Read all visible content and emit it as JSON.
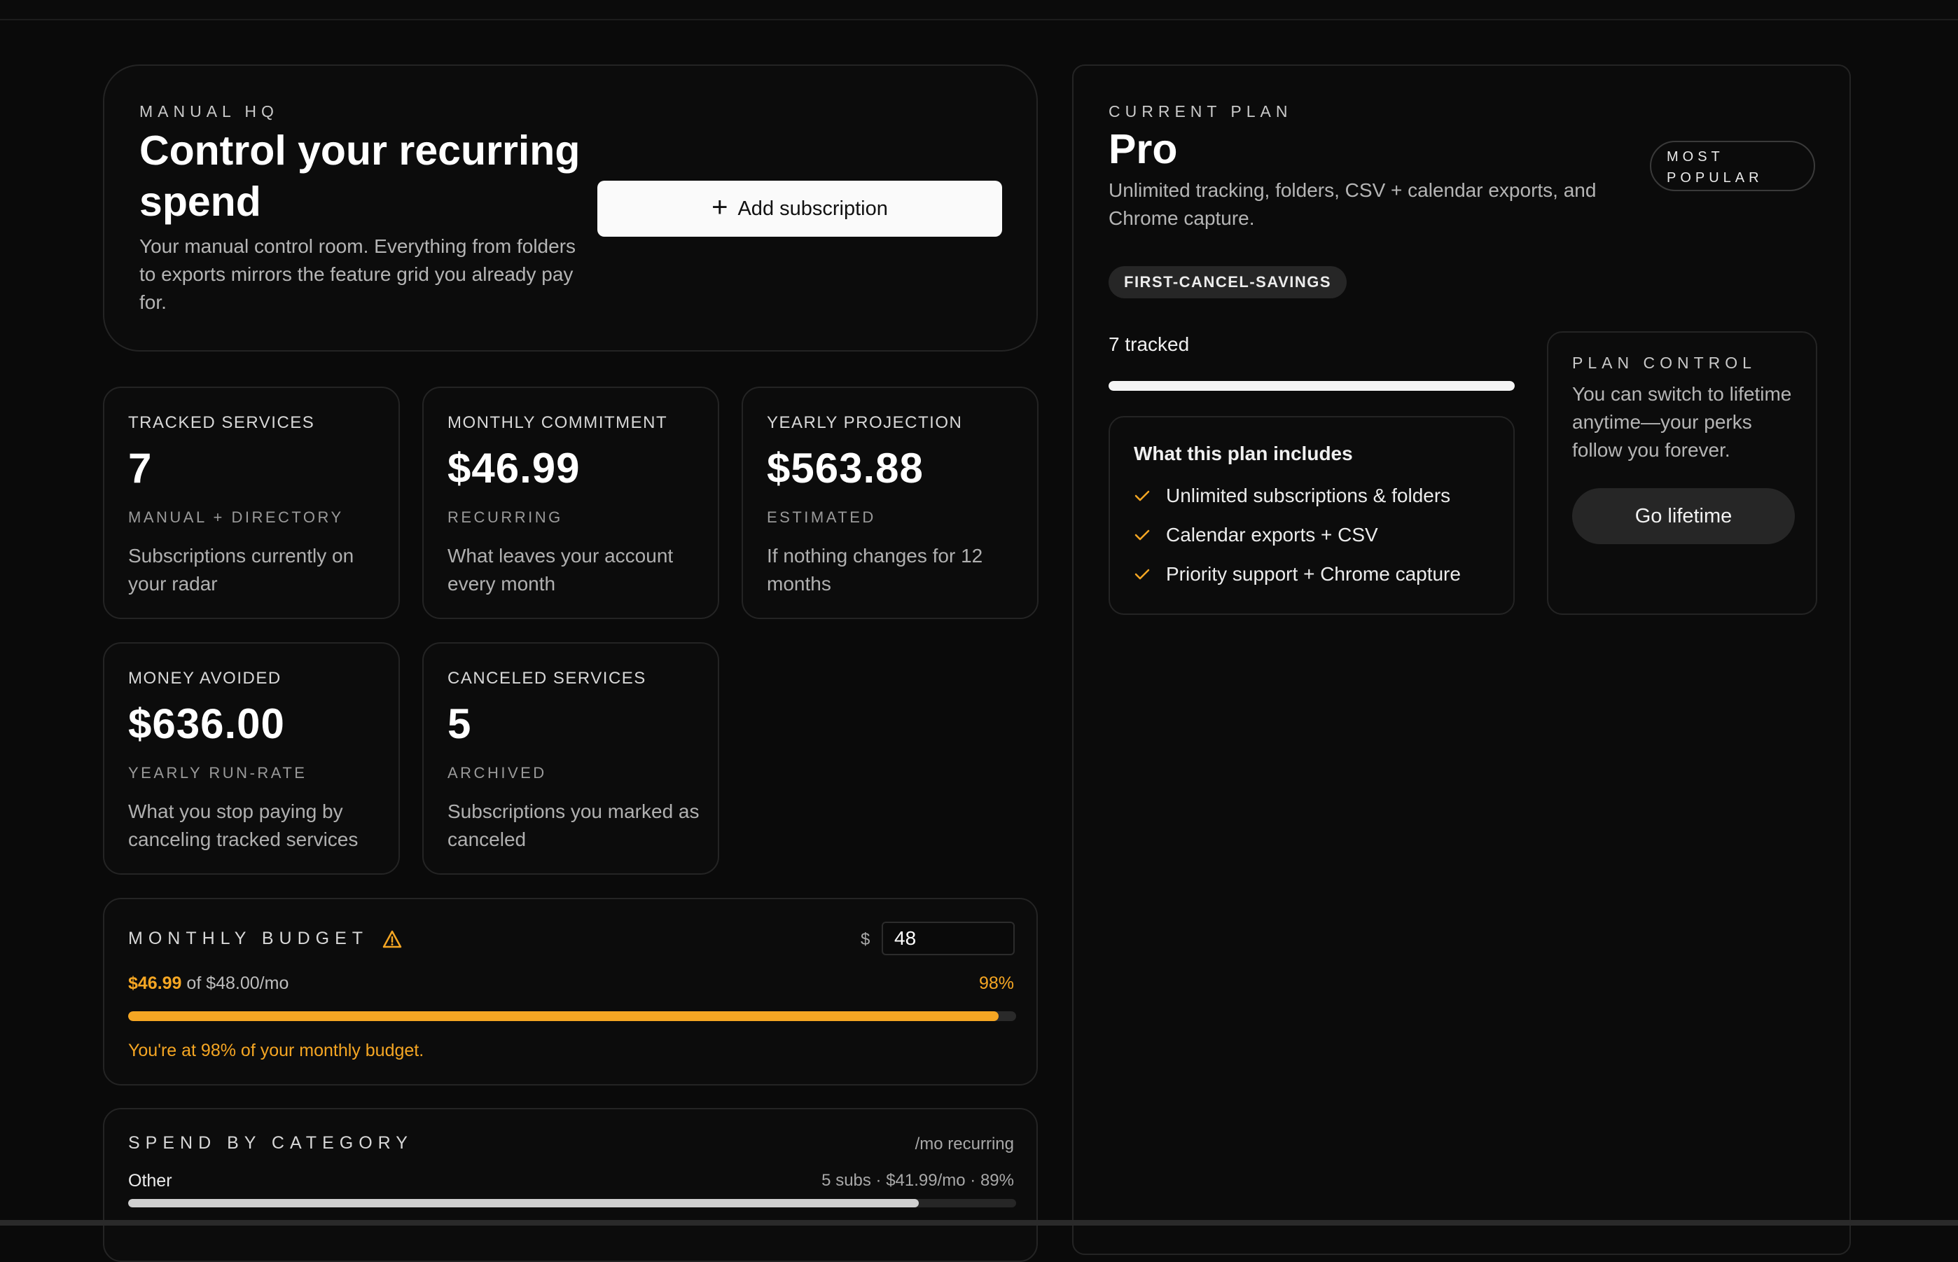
{
  "hero": {
    "eyebrow": "MANUAL HQ",
    "title": "Control your recurring spend",
    "description": "Your manual control room. Everything from folders to exports mirrors the feature grid you already pay for.",
    "add_button": "Add subscription"
  },
  "stats": [
    {
      "label": "TRACKED SERVICES",
      "value": "7",
      "sub": "MANUAL + DIRECTORY",
      "desc": "Subscriptions currently on your radar"
    },
    {
      "label": "MONTHLY COMMITMENT",
      "value": "$46.99",
      "sub": "RECURRING",
      "desc": "What leaves your account every month"
    },
    {
      "label": "YEARLY PROJECTION",
      "value": "$563.88",
      "sub": "ESTIMATED",
      "desc": "If nothing changes for 12 months"
    },
    {
      "label": "MONEY AVOIDED",
      "value": "$636.00",
      "sub": "YEARLY RUN-RATE",
      "desc": "What you stop paying by canceling tracked services"
    },
    {
      "label": "CANCELED SERVICES",
      "value": "5",
      "sub": "ARCHIVED",
      "desc": "Subscriptions you marked as canceled"
    }
  ],
  "budget": {
    "label": "MONTHLY BUDGET",
    "currency": "$",
    "input_value": "48",
    "spent": "$46.99",
    "of_text": "of $48.00/mo",
    "percent_label": "98%",
    "fill_fraction": 0.98,
    "warning": "You're at 98% of your monthly budget.",
    "accent_color": "#f5a623"
  },
  "category": {
    "label": "SPEND BY CATEGORY",
    "meta": "/mo recurring",
    "rows": [
      {
        "name": "Other",
        "stats": "5 subs · $41.99/mo · 89%",
        "fraction": 0.89
      }
    ]
  },
  "plan": {
    "eyebrow": "CURRENT PLAN",
    "title": "Pro",
    "description": "Unlimited tracking, folders, CSV + calendar exports, and Chrome capture.",
    "badge": "MOST POPULAR",
    "promo": "FIRST-CANCEL-SAVINGS",
    "tracked": "7 tracked",
    "tracked_fraction": 1.0,
    "includes_title": "What this plan includes",
    "features": [
      "Unlimited subscriptions & folders",
      "Calendar exports + CSV",
      "Priority support + Chrome capture"
    ],
    "check_color": "#f5a623",
    "control": {
      "eyebrow": "PLAN CONTROL",
      "description": "You can switch to lifetime anytime—your perks follow you forever.",
      "button": "Go lifetime"
    }
  }
}
